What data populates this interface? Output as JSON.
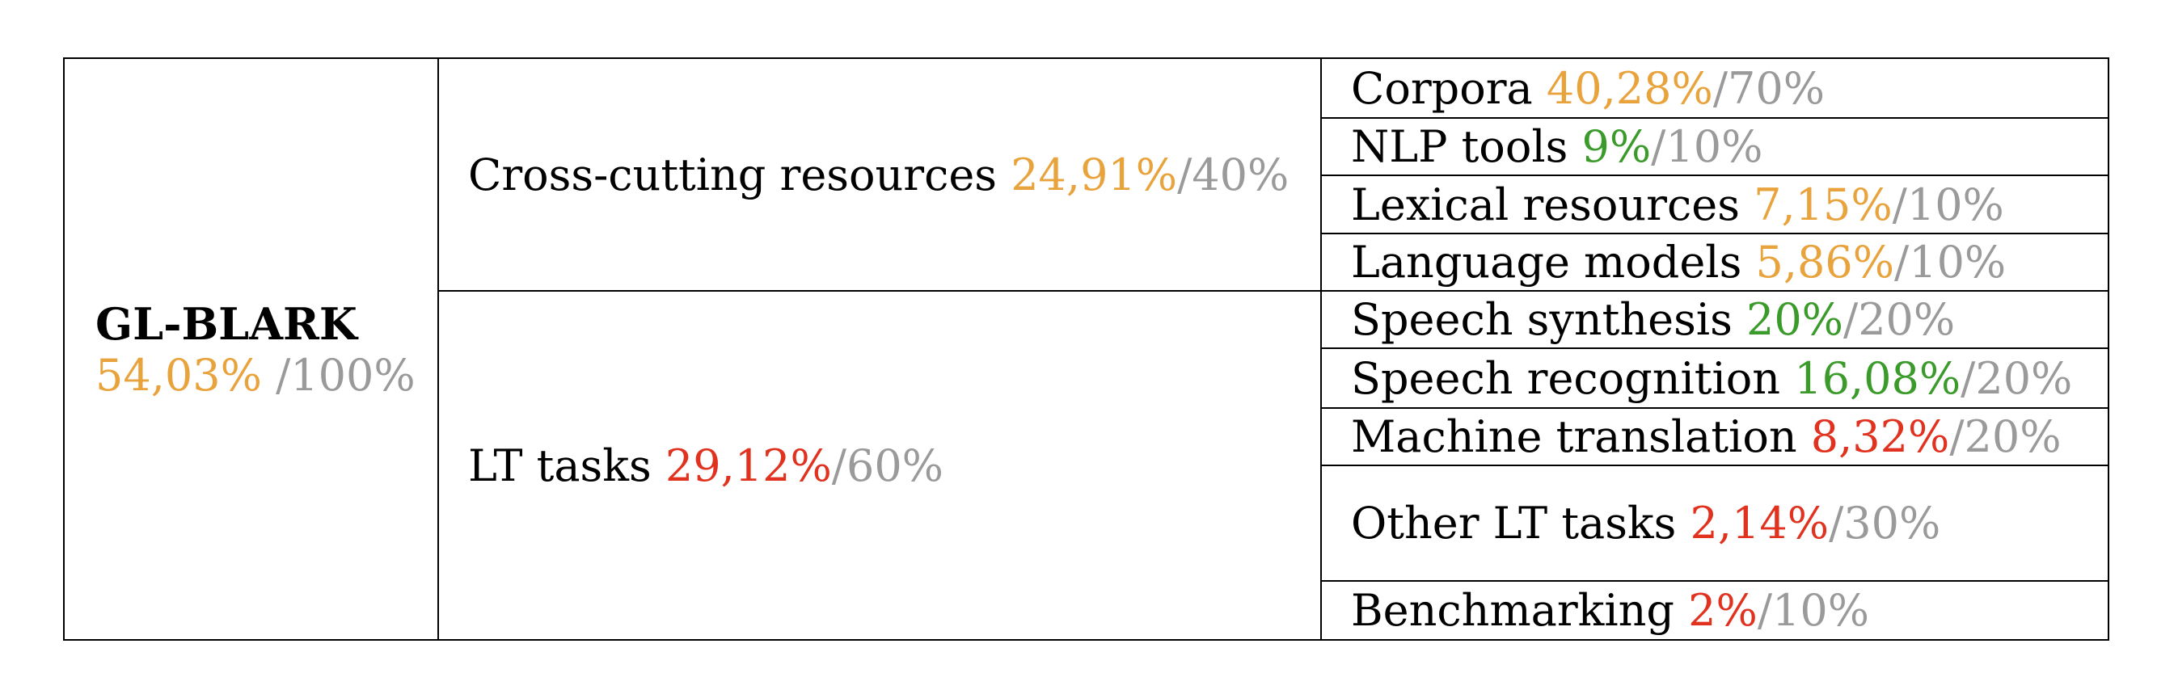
{
  "root": {
    "label": "GL-BLARK",
    "score": "54,03%",
    "max": "/100%",
    "color": "#e8a33d"
  },
  "groups": [
    {
      "label": "Cross-cutting resources",
      "score": "24,91%",
      "max": "/40%",
      "color": "#e8a33d",
      "items": [
        {
          "label": "Corpora",
          "score": "40,28%",
          "max": "/70%",
          "color": "#e8a33d"
        },
        {
          "label": "NLP tools",
          "score": "9%",
          "max": "/10%",
          "color": "#3a9a2a"
        },
        {
          "label": "Lexical resources",
          "score": "7,15%",
          "max": "/10%",
          "color": "#e8a33d"
        },
        {
          "label": "Language models",
          "score": "5,86%",
          "max": "/10%",
          "color": "#e8a33d"
        }
      ]
    },
    {
      "label": "LT tasks",
      "score": "29,12%",
      "max": "/60%",
      "color": "#e0321f",
      "items": [
        {
          "label": "Speech synthesis",
          "score": "20%",
          "max": "/20%",
          "color": "#3a9a2a"
        },
        {
          "label": "Speech recognition",
          "score": "16,08%",
          "max": "/20%",
          "color": "#3a9a2a"
        },
        {
          "label": "Machine translation",
          "score": "8,32%",
          "max": "/20%",
          "color": "#e0321f"
        },
        {
          "label": "Other LT tasks",
          "score": "2,14%",
          "max": "/30%",
          "color": "#e0321f"
        },
        {
          "label": "Benchmarking",
          "score": "2%",
          "max": "/10%",
          "color": "#e0321f"
        }
      ]
    }
  ]
}
